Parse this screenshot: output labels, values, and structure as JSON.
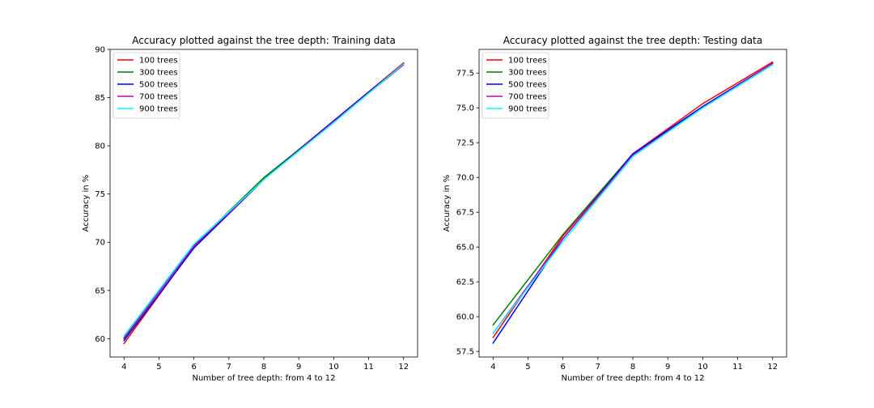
{
  "chart_data": [
    {
      "type": "line",
      "title": "Accuracy plotted against the tree depth: Training data",
      "xlabel": "Number of tree depth: from 4 to 12",
      "ylabel": "Accuracy in %",
      "xlim": [
        3.6,
        12.4
      ],
      "ylim": [
        58.1,
        90.0
      ],
      "xticks": [
        4,
        5,
        6,
        7,
        8,
        9,
        10,
        11,
        12
      ],
      "yticks": [
        60,
        65,
        70,
        75,
        80,
        85,
        90
      ],
      "ytick_labels": [
        "60",
        "65",
        "70",
        "75",
        "80",
        "85",
        "90"
      ],
      "grid": false,
      "legend_position": "top-left",
      "x": [
        4,
        6,
        8,
        10,
        12
      ],
      "series": [
        {
          "name": "100 trees",
          "color": "#ff0000",
          "values": [
            59.5,
            69.5,
            76.6,
            82.6,
            88.6
          ]
        },
        {
          "name": "300 trees",
          "color": "#008000",
          "values": [
            60.0,
            69.7,
            76.7,
            82.5,
            88.5
          ]
        },
        {
          "name": "500 trees",
          "color": "#0000ff",
          "values": [
            59.8,
            69.4,
            76.5,
            82.6,
            88.5
          ]
        },
        {
          "name": "700 trees",
          "color": "#bf00bf",
          "values": [
            60.1,
            69.6,
            76.5,
            82.5,
            88.4
          ]
        },
        {
          "name": "900 trees",
          "color": "#00ffff",
          "values": [
            60.3,
            69.8,
            76.5,
            82.4,
            88.5
          ]
        }
      ]
    },
    {
      "type": "line",
      "title": "Accuracy plotted against the tree depth: Testing data",
      "xlabel": "Number of tree depth: from 4 to 12",
      "ylabel": "Accuracy in %",
      "xlim": [
        3.6,
        12.4
      ],
      "ylim": [
        57.1,
        79.2
      ],
      "xticks": [
        4,
        5,
        6,
        7,
        8,
        9,
        10,
        11,
        12
      ],
      "yticks": [
        57.5,
        60.0,
        62.5,
        65.0,
        67.5,
        70.0,
        72.5,
        75.0,
        77.5
      ],
      "ytick_labels": [
        "57.5",
        "60.0",
        "62.5",
        "65.0",
        "67.5",
        "70.0",
        "72.5",
        "75.0",
        "77.5"
      ],
      "grid": false,
      "legend_position": "top-left",
      "x": [
        4,
        6,
        8,
        10,
        12
      ],
      "series": [
        {
          "name": "100 trees",
          "color": "#ff0000",
          "values": [
            58.5,
            65.8,
            71.7,
            75.3,
            78.3
          ]
        },
        {
          "name": "300 trees",
          "color": "#008000",
          "values": [
            59.4,
            65.9,
            71.7,
            75.0,
            78.1
          ]
        },
        {
          "name": "500 trees",
          "color": "#0000ff",
          "values": [
            58.1,
            65.6,
            71.7,
            75.1,
            78.2
          ]
        },
        {
          "name": "700 trees",
          "color": "#bf00bf",
          "values": [
            58.8,
            65.6,
            71.6,
            75.0,
            78.2
          ]
        },
        {
          "name": "900 trees",
          "color": "#00ffff",
          "values": [
            58.8,
            65.4,
            71.5,
            75.0,
            78.1
          ]
        }
      ]
    }
  ]
}
